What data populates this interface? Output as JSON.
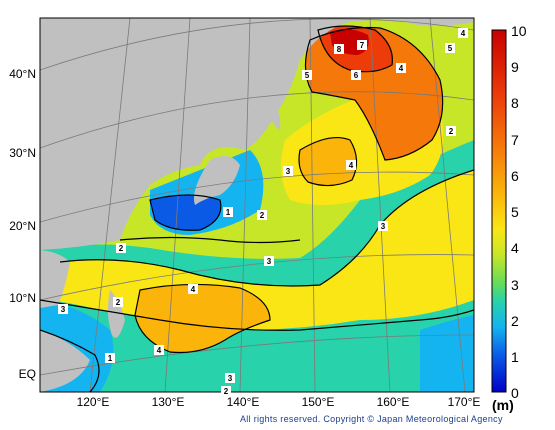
{
  "colorbar": {
    "ticks": [
      "10",
      "9",
      "8",
      "7",
      "6",
      "5",
      "4",
      "3",
      "2",
      "1",
      "0"
    ],
    "unit": "(m)",
    "colors": [
      "#0000c8",
      "#0a5ae6",
      "#14b4f0",
      "#28d2aa",
      "#64dc5a",
      "#c8e628",
      "#fae614",
      "#fab40a",
      "#f5780a",
      "#eb3c0a",
      "#c80000"
    ]
  },
  "axes": {
    "latitudes": [
      "40°N",
      "30°N",
      "20°N",
      "10°N",
      "EQ"
    ],
    "longitudes": [
      "120°E",
      "130°E",
      "140°E",
      "150°E",
      "160°E",
      "170°E"
    ]
  },
  "contour_labels": [
    "8",
    "7",
    "6",
    "5",
    "4",
    "4",
    "5",
    "2",
    "4",
    "3",
    "3",
    "2",
    "1",
    "2",
    "3",
    "4",
    "3",
    "2",
    "1",
    "4",
    "3",
    "2"
  ],
  "credit": "All rights reserved. Copyright © Japan Meteorological Agency",
  "colors": {
    "land": "#c0c0c0",
    "graticule": "#7a7a7a",
    "contour": "#000000",
    "credit_text": "#1c3f8f"
  }
}
